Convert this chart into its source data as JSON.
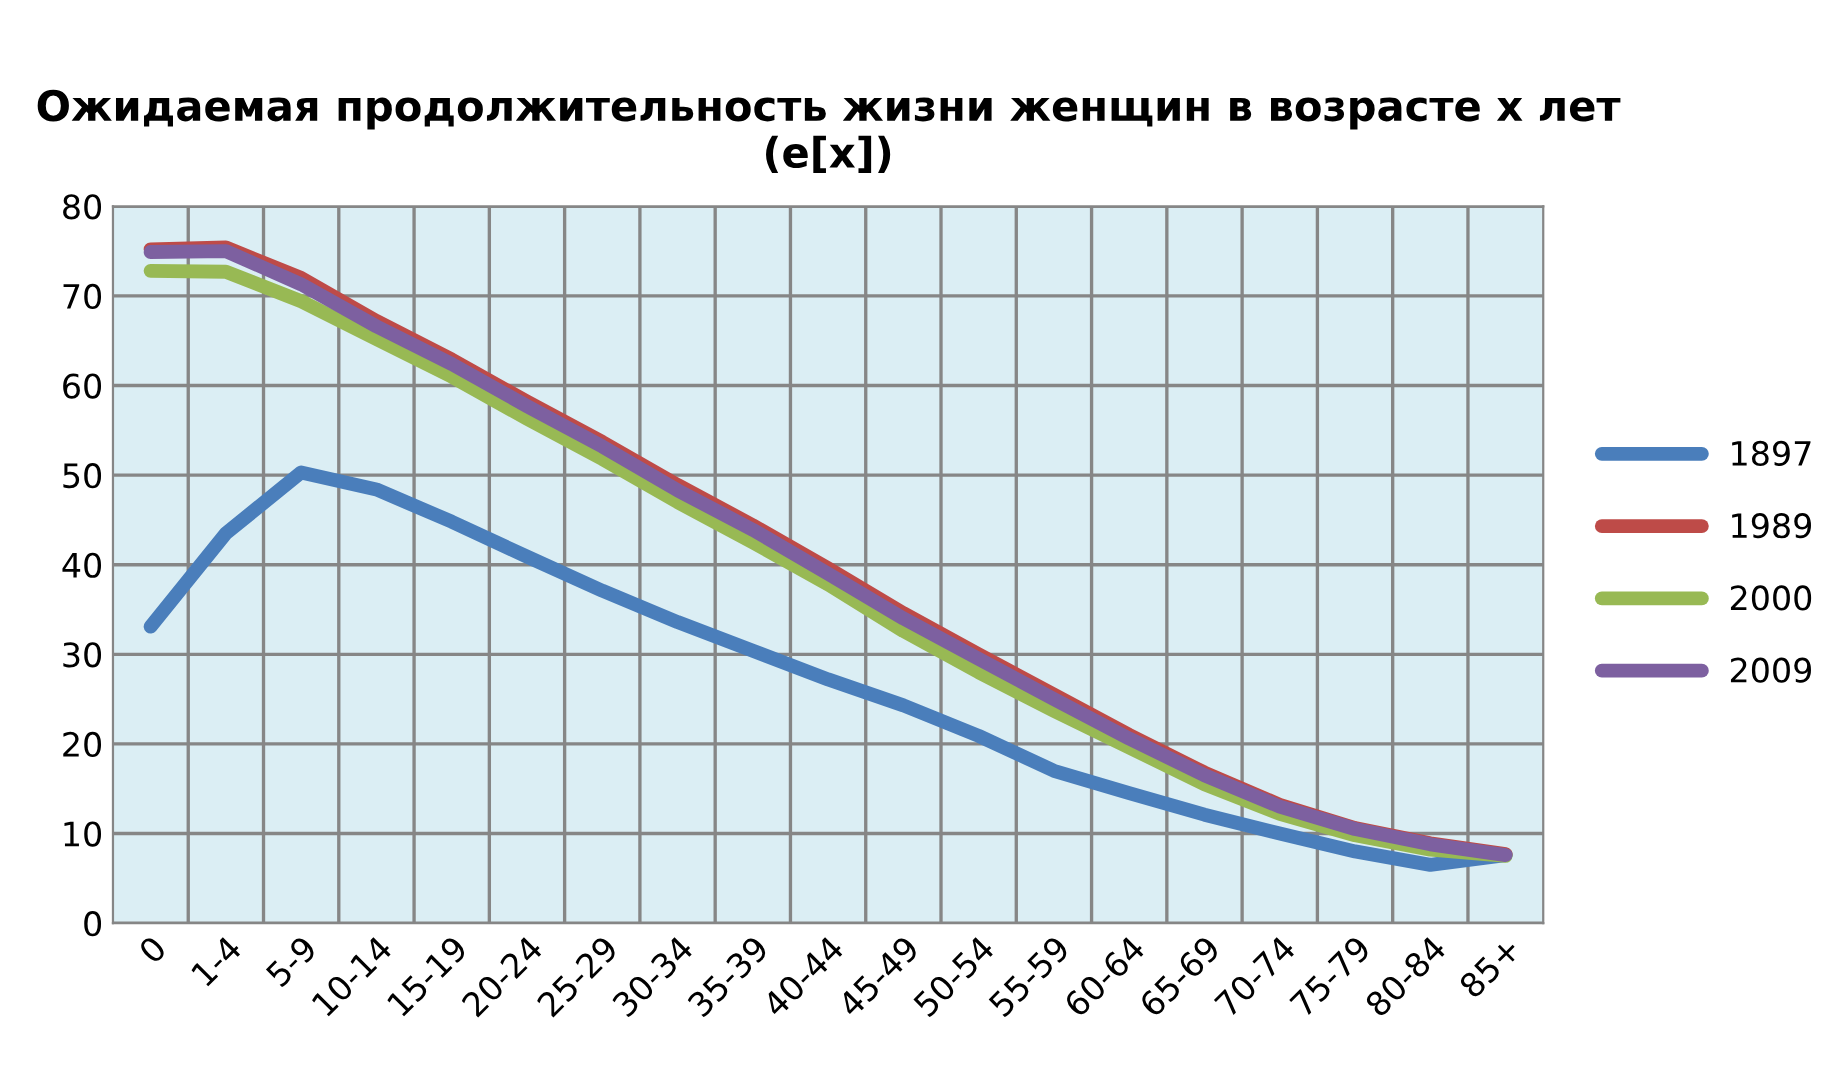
{
  "chart_data": {
    "type": "line",
    "title": "Ожидаемая продолжительность жизни женщин в возрасте x лет\n(e[x])",
    "categories": [
      "0",
      "1-4",
      "5-9",
      "10-14",
      "15-19",
      "20-24",
      "25-29",
      "30-34",
      "35-39",
      "40-44",
      "45-49",
      "50-54",
      "55-59",
      "60-64",
      "65-69",
      "70-74",
      "75-79",
      "80-84",
      "85+"
    ],
    "series": [
      {
        "name": "1897",
        "color": "#4a7ebb",
        "values": [
          33.1,
          43.5,
          50.3,
          48.4,
          44.8,
          40.9,
          37.1,
          33.6,
          30.4,
          27.2,
          24.3,
          20.9,
          17.0,
          14.5,
          12.1,
          10.0,
          8.0,
          6.5,
          7.6
        ]
      },
      {
        "name": "1989",
        "color": "#be4b48",
        "values": [
          75.2,
          75.4,
          72.0,
          67.2,
          62.9,
          58.2,
          53.7,
          48.9,
          44.4,
          39.6,
          34.6,
          30.0,
          25.5,
          21.0,
          16.8,
          13.2,
          10.6,
          8.9,
          7.7
        ]
      },
      {
        "name": "2000",
        "color": "#98b954",
        "values": [
          72.8,
          72.7,
          69.4,
          65.2,
          61.0,
          56.3,
          51.8,
          47.0,
          42.5,
          37.8,
          32.6,
          28.0,
          23.7,
          19.6,
          15.5,
          12.2,
          9.8,
          8.2,
          7.5
        ]
      },
      {
        "name": "2009",
        "color": "#7d60a0",
        "values": [
          74.9,
          75.0,
          71.3,
          66.6,
          62.4,
          57.7,
          53.2,
          48.3,
          43.9,
          39.0,
          34.0,
          29.5,
          25.0,
          20.6,
          16.5,
          13.0,
          10.5,
          8.8,
          7.6
        ]
      }
    ],
    "ylim": [
      0,
      80
    ],
    "yticks": [
      0,
      10,
      20,
      30,
      40,
      50,
      60,
      70,
      80
    ],
    "grid": true,
    "legend": "right",
    "line_style": "solid",
    "marker": "none"
  }
}
